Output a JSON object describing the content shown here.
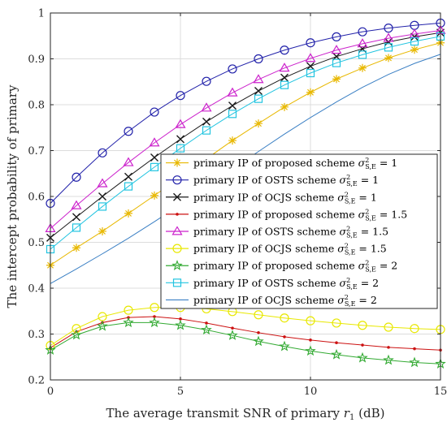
{
  "chart_data": {
    "type": "line",
    "xlabel_prefix": "The average transmit SNR of primary ",
    "xlabel_symbol": "r",
    "xlabel_sub": "1",
    "xlabel_suffix": " (dB)",
    "ylabel": "The intercept probability of primary",
    "xlim": [
      0,
      15
    ],
    "ylim": [
      0.2,
      1.0
    ],
    "xticks": [
      0,
      5,
      10,
      15
    ],
    "yticks": [
      0.2,
      0.3,
      0.4,
      0.5,
      0.6,
      0.7,
      0.8,
      0.9,
      1.0
    ],
    "xtick_labels": [
      "0",
      "5",
      "10",
      "15"
    ],
    "ytick_labels": [
      "0.2",
      "0.3",
      "0.4",
      "0.5",
      "0.6",
      "0.7",
      "0.8",
      "0.9",
      "1"
    ],
    "grid": true,
    "legend_position": "center-right",
    "x": [
      0,
      1,
      2,
      3,
      4,
      5,
      6,
      7,
      8,
      9,
      10,
      11,
      12,
      13,
      14,
      15
    ],
    "series": [
      {
        "name": "primary IP of proposed scheme",
        "sigma": "1",
        "color": "#e8b800",
        "marker": "asterisk",
        "values": [
          0.45,
          0.488,
          0.524,
          0.563,
          0.602,
          0.642,
          0.682,
          0.722,
          0.759,
          0.795,
          0.827,
          0.856,
          0.88,
          0.902,
          0.92,
          0.935
        ]
      },
      {
        "name": "primary IP of OSTS scheme",
        "sigma": "1",
        "color": "#2222aa",
        "marker": "circle",
        "values": [
          0.585,
          0.642,
          0.695,
          0.742,
          0.784,
          0.82,
          0.851,
          0.878,
          0.9,
          0.919,
          0.935,
          0.948,
          0.959,
          0.967,
          0.973,
          0.978
        ]
      },
      {
        "name": "primary IP of OCJS scheme",
        "sigma": "1",
        "color": "#1a1a1a",
        "marker": "x",
        "values": [
          0.51,
          0.555,
          0.6,
          0.643,
          0.685,
          0.725,
          0.763,
          0.798,
          0.83,
          0.859,
          0.884,
          0.905,
          0.922,
          0.937,
          0.948,
          0.957
        ]
      },
      {
        "name": "primary IP of proposed scheme",
        "sigma": "1.5",
        "color": "#cc1111",
        "marker": "dot",
        "values": [
          0.27,
          0.305,
          0.325,
          0.336,
          0.338,
          0.333,
          0.324,
          0.313,
          0.303,
          0.294,
          0.287,
          0.281,
          0.276,
          0.271,
          0.268,
          0.265
        ]
      },
      {
        "name": "primary IP of OSTS scheme",
        "sigma": "1.5",
        "color": "#cc22cc",
        "marker": "triangle",
        "values": [
          0.53,
          0.58,
          0.628,
          0.674,
          0.717,
          0.757,
          0.793,
          0.826,
          0.855,
          0.88,
          0.901,
          0.919,
          0.933,
          0.945,
          0.954,
          0.962
        ]
      },
      {
        "name": "primary IP of OCJS scheme",
        "sigma": "1.5",
        "color": "#e8e800",
        "marker": "circle",
        "values": [
          0.275,
          0.312,
          0.338,
          0.352,
          0.358,
          0.358,
          0.355,
          0.349,
          0.342,
          0.335,
          0.329,
          0.324,
          0.319,
          0.315,
          0.312,
          0.31
        ]
      },
      {
        "name": "primary IP of proposed scheme",
        "sigma": "2",
        "color": "#33aa33",
        "marker": "star",
        "values": [
          0.265,
          0.298,
          0.317,
          0.325,
          0.325,
          0.319,
          0.309,
          0.297,
          0.284,
          0.273,
          0.263,
          0.255,
          0.248,
          0.243,
          0.238,
          0.235
        ]
      },
      {
        "name": "primary IP of OSTS scheme",
        "sigma": "2",
        "color": "#22c4e0",
        "marker": "square",
        "values": [
          0.485,
          0.532,
          0.578,
          0.622,
          0.664,
          0.705,
          0.744,
          0.78,
          0.813,
          0.843,
          0.869,
          0.891,
          0.909,
          0.925,
          0.938,
          0.949
        ]
      },
      {
        "name": "primary IP of OCJS scheme",
        "sigma": "2",
        "color": "#3a7fc4",
        "marker": "none",
        "values": [
          0.41,
          0.442,
          0.475,
          0.509,
          0.545,
          0.582,
          0.62,
          0.659,
          0.698,
          0.736,
          0.772,
          0.806,
          0.838,
          0.866,
          0.89,
          0.91
        ]
      }
    ]
  }
}
